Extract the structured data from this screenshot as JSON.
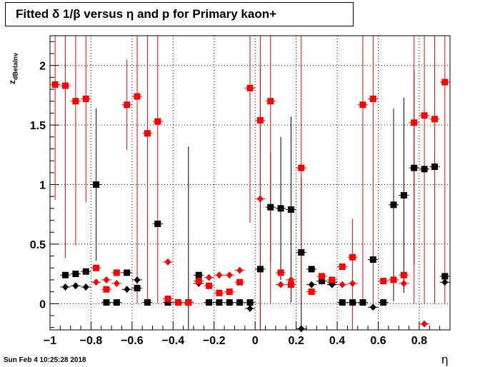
{
  "title": "Fitted δ 1/β versus η and p for Primary kaon+",
  "footer": "Sun Feb  4 10:25:28 2018",
  "chart_data": {
    "type": "scatter",
    "title": "Fitted δ 1/β versus η and p for Primary kaon+",
    "xlabel": "η",
    "ylabel": "z",
    "ylabel_subscript": "dBetalnv",
    "xlim": [
      -1.0,
      0.95
    ],
    "ylim": [
      -0.22,
      2.25
    ],
    "xticks": [
      -1,
      -0.8,
      -0.6,
      -0.4,
      -0.2,
      0,
      0.2,
      0.4,
      0.6,
      0.8
    ],
    "xtick_labels": [
      "−1",
      "−0.8",
      "−0.6",
      "−0.4",
      "−0.2",
      "0",
      "0.2",
      "0.4",
      "0.6",
      "0.8"
    ],
    "yticks": [
      0,
      0.5,
      1,
      1.5,
      2
    ],
    "ytick_labels": [
      "0",
      "0.5",
      "1",
      "1.5",
      "2"
    ],
    "grid": true,
    "colors": {
      "black": "#000000",
      "red": "#ff0000"
    },
    "series": [
      {
        "marker": "square",
        "color": "#000000",
        "points": [
          {
            "x": -0.925,
            "y": 0.24,
            "err": 0.02
          },
          {
            "x": -0.875,
            "y": 0.25,
            "err": 0.02
          },
          {
            "x": -0.825,
            "y": 0.27,
            "err": 0.02
          },
          {
            "x": -0.775,
            "y": 1.0,
            "err": 0.64
          },
          {
            "x": -0.725,
            "y": 0.01,
            "err": 0.01
          },
          {
            "x": -0.675,
            "y": 0.01,
            "err": 0.01
          },
          {
            "x": -0.625,
            "y": 0.26,
            "err": 0.02
          },
          {
            "x": -0.575,
            "y": 0.13,
            "err": 0.02
          },
          {
            "x": -0.525,
            "y": 0.01,
            "err": 0.01
          },
          {
            "x": -0.475,
            "y": 0.67,
            "err": 0.02
          },
          {
            "x": -0.425,
            "y": 0.01,
            "err": 0.01
          },
          {
            "x": -0.375,
            "y": 0.01,
            "err": 0.01
          },
          {
            "x": -0.325,
            "y": 0.01,
            "err": 1.31
          },
          {
            "x": -0.275,
            "y": 0.24,
            "err": 0.02
          },
          {
            "x": -0.225,
            "y": 0.01,
            "err": 0.01
          },
          {
            "x": -0.175,
            "y": 0.01,
            "err": 0.01
          },
          {
            "x": -0.125,
            "y": 0.01,
            "err": 0.01
          },
          {
            "x": -0.075,
            "y": 0.01,
            "err": 0.01
          },
          {
            "x": -0.025,
            "y": 0.01,
            "err": 0.01
          },
          {
            "x": 0.025,
            "y": 0.29,
            "err": 0.02
          },
          {
            "x": 0.075,
            "y": 0.81,
            "err": 0.46
          },
          {
            "x": 0.125,
            "y": 0.8,
            "err": 0.6
          },
          {
            "x": 0.175,
            "y": 0.79,
            "err": 0.78
          },
          {
            "x": 0.225,
            "y": 0.43,
            "err": 0.63
          },
          {
            "x": 0.275,
            "y": 0.29,
            "err": 0.02
          },
          {
            "x": 0.325,
            "y": 0.19,
            "err": 0.02
          },
          {
            "x": 0.375,
            "y": 0.18,
            "err": 0.02
          },
          {
            "x": 0.425,
            "y": 0.01,
            "err": 0.01
          },
          {
            "x": 0.475,
            "y": 0.01,
            "err": 0.01
          },
          {
            "x": 0.525,
            "y": 0.01,
            "err": 0.01
          },
          {
            "x": 0.575,
            "y": 0.37,
            "err": 0.02
          },
          {
            "x": 0.625,
            "y": 0.01,
            "err": 0.01
          },
          {
            "x": 0.675,
            "y": 0.83,
            "err": 0.81
          },
          {
            "x": 0.725,
            "y": 0.91,
            "err": 0.82
          },
          {
            "x": 0.775,
            "y": 1.14,
            "err": 0.82
          },
          {
            "x": 0.825,
            "y": 1.13,
            "err": 0.02
          },
          {
            "x": 0.875,
            "y": 1.15,
            "err": 0.02
          },
          {
            "x": 0.925,
            "y": 0.23,
            "err": 0.02
          }
        ]
      },
      {
        "marker": "diamond",
        "color": "#000000",
        "points": [
          {
            "x": -0.925,
            "y": 0.14,
            "err": 0.02
          },
          {
            "x": -0.875,
            "y": 0.15,
            "err": 0.02
          },
          {
            "x": -0.825,
            "y": 0.14,
            "err": 0.02
          },
          {
            "x": -0.625,
            "y": 0.12,
            "err": 0.02
          },
          {
            "x": -0.575,
            "y": 0.2,
            "err": 0.02
          },
          {
            "x": -0.275,
            "y": 0.17,
            "err": 0.02
          },
          {
            "x": -0.025,
            "y": -0.04,
            "err": 0.02
          },
          {
            "x": 0.225,
            "y": -0.21,
            "err": 0.02
          },
          {
            "x": 0.275,
            "y": 0.16,
            "err": 0.02
          },
          {
            "x": 0.325,
            "y": 0.19,
            "err": 0.02
          },
          {
            "x": 0.375,
            "y": 0.16,
            "err": 0.02
          },
          {
            "x": 0.575,
            "y": -0.03,
            "err": 0.02
          },
          {
            "x": 0.925,
            "y": 0.18,
            "err": 0.02
          }
        ]
      },
      {
        "marker": "square",
        "color": "#ff0000",
        "points": [
          {
            "x": -0.975,
            "y": 1.84,
            "err": 0.97
          },
          {
            "x": -0.925,
            "y": 1.83,
            "err": 1.45
          },
          {
            "x": -0.875,
            "y": 1.7,
            "err": 1.21
          },
          {
            "x": -0.825,
            "y": 1.72,
            "err": 0.87
          },
          {
            "x": -0.775,
            "y": 0.3,
            "err": 0.02
          },
          {
            "x": -0.725,
            "y": 0.12,
            "err": 0.02
          },
          {
            "x": -0.675,
            "y": 0.26,
            "err": 0.02
          },
          {
            "x": -0.625,
            "y": 1.67,
            "err": 0.38
          },
          {
            "x": -0.575,
            "y": 1.74,
            "err": 1.74
          },
          {
            "x": -0.525,
            "y": 1.43,
            "err": 1.43
          },
          {
            "x": -0.475,
            "y": 1.53,
            "err": 1.53
          },
          {
            "x": -0.425,
            "y": 0.04,
            "err": 0.02
          },
          {
            "x": -0.375,
            "y": 0.01,
            "err": 0.01
          },
          {
            "x": -0.325,
            "y": 0.01,
            "err": 0.01
          },
          {
            "x": -0.275,
            "y": 0.19,
            "err": 0.02
          },
          {
            "x": -0.225,
            "y": 0.15,
            "err": 0.02
          },
          {
            "x": -0.175,
            "y": 0.09,
            "err": 0.02
          },
          {
            "x": -0.125,
            "y": 0.1,
            "err": 0.02
          },
          {
            "x": -0.075,
            "y": 0.18,
            "err": 0.02
          },
          {
            "x": -0.025,
            "y": 1.81,
            "err": 1.13
          },
          {
            "x": 0.025,
            "y": 1.54,
            "err": 1.76
          },
          {
            "x": 0.075,
            "y": 1.7,
            "err": 1.7
          },
          {
            "x": 0.125,
            "y": 0.26,
            "err": 0.02
          },
          {
            "x": 0.175,
            "y": 0.16,
            "err": 0.02
          },
          {
            "x": 0.225,
            "y": 1.14,
            "err": 1.14
          },
          {
            "x": 0.275,
            "y": 0.1,
            "err": 0.02
          },
          {
            "x": 0.325,
            "y": 0.23,
            "err": 0.02
          },
          {
            "x": 0.375,
            "y": 0.2,
            "err": 0.02
          },
          {
            "x": 0.425,
            "y": 0.31,
            "err": 0.02
          },
          {
            "x": 0.475,
            "y": 0.39,
            "err": 0.02
          },
          {
            "x": 0.525,
            "y": 1.67,
            "err": 1.67
          },
          {
            "x": 0.575,
            "y": 1.72,
            "err": 1.72
          },
          {
            "x": 0.625,
            "y": 0.19,
            "err": 0.02
          },
          {
            "x": 0.675,
            "y": 0.2,
            "err": 0.02
          },
          {
            "x": 0.725,
            "y": 0.24,
            "err": 0.02
          },
          {
            "x": 0.775,
            "y": 1.52,
            "err": 1.52
          },
          {
            "x": 0.825,
            "y": 1.58,
            "err": 1.58
          },
          {
            "x": 0.875,
            "y": 1.55,
            "err": 1.55
          },
          {
            "x": 0.925,
            "y": 1.86,
            "err": 1.86
          }
        ]
      },
      {
        "marker": "diamond",
        "color": "#ff0000",
        "points": [
          {
            "x": -0.775,
            "y": 0.18,
            "err": 0.02
          },
          {
            "x": -0.725,
            "y": 0.2,
            "err": 0.02
          },
          {
            "x": -0.675,
            "y": 0.17,
            "err": 0.02
          },
          {
            "x": -0.425,
            "y": 0.35,
            "err": 0.02
          },
          {
            "x": -0.225,
            "y": 0.22,
            "err": 0.02
          },
          {
            "x": -0.175,
            "y": 0.24,
            "err": 0.02
          },
          {
            "x": -0.125,
            "y": 0.24,
            "err": 0.02
          },
          {
            "x": -0.075,
            "y": 0.28,
            "err": 0.02
          },
          {
            "x": 0.025,
            "y": 0.88,
            "err": 1.11
          },
          {
            "x": 0.125,
            "y": 0.16,
            "err": 0.02
          },
          {
            "x": 0.175,
            "y": 0.2,
            "err": 0.02
          },
          {
            "x": 0.425,
            "y": 0.16,
            "err": 0.02
          },
          {
            "x": 0.475,
            "y": 0.17,
            "err": 0.54
          },
          {
            "x": 0.675,
            "y": 0.2,
            "err": 0.02
          },
          {
            "x": 0.725,
            "y": 0.17,
            "err": 0.02
          },
          {
            "x": 0.825,
            "y": -0.17,
            "err": 0.02
          }
        ]
      }
    ]
  }
}
